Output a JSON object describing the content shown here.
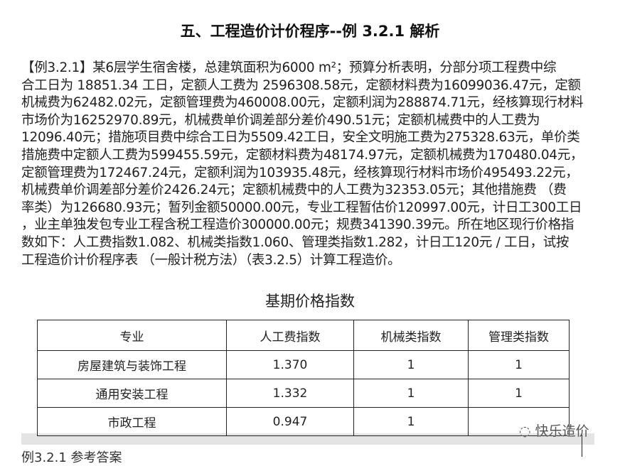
{
  "title": "五、工程造价计价程序--例 3.2.1 解析",
  "paragraph_lines": [
    "【例3.2.1】某6层学生宿舍楼，总建筑面积为6000 m²；预算分析表明，分部分项工程费中综",
    "合工日为 18851.34 工日，定额人工费为 2596308.58元，定额材料费为16099036.47元，定额",
    "机械费为62482.02元，定额管理费为460008.00元，定额利润为288874.71元，经核算现行材料",
    "市场价为16252970.89元，机械费单价调差部分差价490.51元；定额机械费中的人工费为",
    "12096.40元；措施项目费中综合工日为5509.42工日，安全文明施工费为275328.63元，单价类",
    "措施费中定额人工费为599455.59元，定额材料费为48174.97元，定额机械费为170480.04元，",
    "定额管理费为172467.24元，定额利润为103935.48元，经核算现行材料市场价495493.22元，",
    "机械费单价调差部分差价2426.24元；定额机械费中的人工费为32353.05元；其他措施费 （费",
    "率类）为126680.93元；暂列金额50000.00元，专业工程暂估价120997.00元，计日工300工日",
    "，业主单独发包专业工程含税工程造价300000.00元；规费341390.39元。所在地区现行价格指",
    "数如下：人工费指数1.082、机械类指数1.060、管理类指数1.282，计日工120元 / 工日，试按",
    "工程造价计价程序表 （一般计税方法）（表3.2.5）计算工程造价。"
  ],
  "table": {
    "title": "基期价格指数",
    "headers": [
      "专业",
      "人工费指数",
      "机械类指数",
      "管理类指数"
    ],
    "rows": [
      [
        "房屋建筑与装饰工程",
        "1.370",
        "1",
        "1"
      ],
      [
        "通用安装工程",
        "1.332",
        "1",
        "1"
      ],
      [
        "市政工程",
        "0.947",
        "1",
        ""
      ]
    ]
  },
  "watermark": "快乐造价",
  "bottom_text": "例3.2.1 参考答案"
}
